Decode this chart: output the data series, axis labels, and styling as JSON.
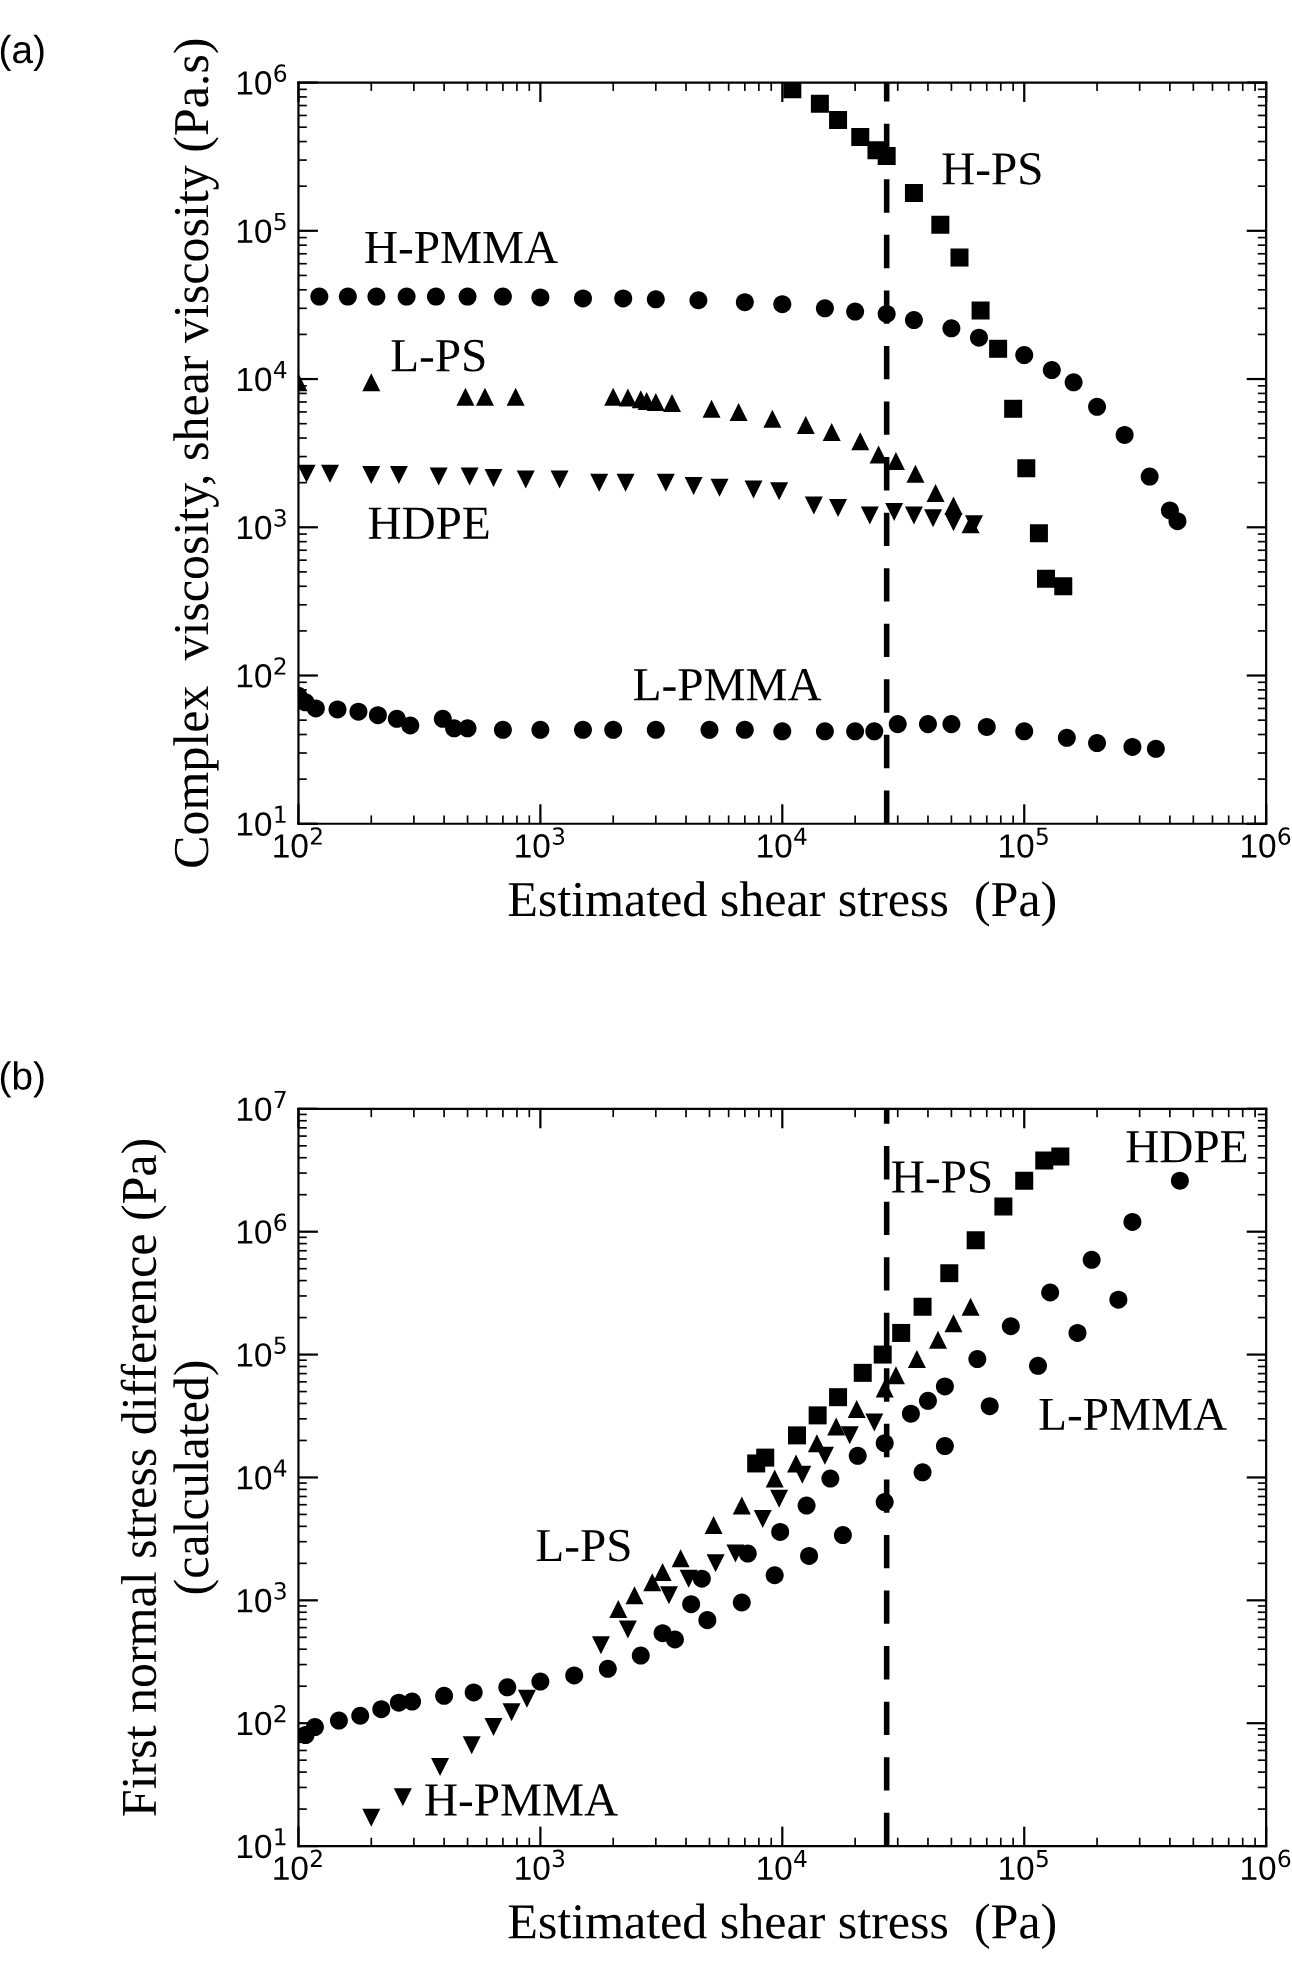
{
  "chart_data": [
    {
      "type": "scatter",
      "title": "(a)",
      "xlabel": "Estimated shear stress  (Pa)",
      "ylabel": "Complex  viscosity, shear viscosity (Pa.s)",
      "log": "xy",
      "grid": false,
      "xlim": [
        100,
        1000000
      ],
      "xticks": [
        {
          "value": 100,
          "label": "10$^{2}$"
        },
        {
          "value": 1000,
          "label": "10$^{3}$"
        },
        {
          "value": 10000,
          "label": "10$^{4}$"
        },
        {
          "value": 100000,
          "label": "10$^{5}$"
        },
        {
          "value": 1000000,
          "label": "10$^{6}$"
        }
      ],
      "ylim": [
        10,
        1000000
      ],
      "yticks": [
        {
          "value": 10,
          "label": "10$^{1}$"
        },
        {
          "value": 100,
          "label": "10$^{2}$"
        },
        {
          "value": 1000,
          "label": "10$^{3}$"
        },
        {
          "value": 10000,
          "label": "10$^{4}$"
        },
        {
          "value": 100000,
          "label": "10$^{5}$"
        },
        {
          "value": 1000000,
          "label": "10$^{6}$"
        }
      ],
      "ref_lines": [
        {
          "axis": "x",
          "value": 27000,
          "line_style": "dashed",
          "color": "#000000"
        }
      ],
      "series": [
        {
          "name": "H-PMMA",
          "color": "#000000",
          "marker": "circle",
          "x": [
            122,
            160,
            210,
            280,
            370,
            500,
            700,
            1000,
            1500,
            2200,
            3000,
            4500,
            7000,
            10000,
            15000,
            20000,
            27000,
            35000,
            50000,
            65000,
            100000,
            130000,
            160000,
            200000,
            260000,
            330000,
            400000,
            430000
          ],
          "values": [
            36000,
            36000,
            36000,
            36000,
            36000,
            36000,
            36000,
            35500,
            35000,
            35000,
            34500,
            34000,
            33000,
            32000,
            30000,
            28500,
            27500,
            25000,
            22000,
            19000,
            14500,
            11500,
            9500,
            6500,
            4200,
            2200,
            1300,
            1100
          ]
        },
        {
          "name": "H-PS",
          "color": "#000000",
          "marker": "square",
          "x": [
            11000,
            14300,
            17000,
            21000,
            24500,
            27000,
            35000,
            45000,
            54000,
            66000,
            78000,
            90000,
            102000,
            115000,
            123000,
            145000
          ],
          "values": [
            900000,
            720000,
            560000,
            430000,
            350000,
            320000,
            180000,
            110000,
            66000,
            29000,
            16000,
            6300,
            2500,
            910,
            450,
            400
          ]
        },
        {
          "name": "L-PS",
          "color": "#000000",
          "marker": "triangle",
          "x": [
            100,
            200,
            490,
            590,
            790,
            2000,
            2300,
            2600,
            2750,
            3000,
            3500,
            5100,
            6600,
            9100,
            12500,
            16000,
            21000,
            25000,
            29500,
            35500,
            43000,
            51000,
            60000
          ],
          "values": [
            9500,
            9500,
            7600,
            7600,
            7600,
            7600,
            7500,
            7300,
            7100,
            7000,
            6900,
            6300,
            6000,
            5400,
            4900,
            4400,
            3800,
            3100,
            2800,
            2300,
            1700,
            1400,
            1050
          ]
        },
        {
          "name": "HDPE",
          "color": "#000000",
          "marker": "triangle_down",
          "x": [
            108,
            135,
            200,
            260,
            380,
            510,
            640,
            870,
            1200,
            1750,
            2250,
            3300,
            4300,
            5500,
            7600,
            9700,
            13500,
            17000,
            23000,
            29000,
            35000,
            42000,
            51000,
            62000
          ],
          "values": [
            2300,
            2300,
            2250,
            2250,
            2200,
            2200,
            2150,
            2100,
            2100,
            2000,
            2000,
            2000,
            1900,
            1850,
            1800,
            1750,
            1400,
            1350,
            1200,
            1270,
            1200,
            1150,
            1080,
            1050
          ]
        },
        {
          "name": "L-PMMA",
          "color": "#000000",
          "marker": "circle",
          "x": [
            100,
            107,
            118,
            145,
            177,
            213,
            255,
            290,
            395,
            440,
            500,
            700,
            1000,
            1500,
            2000,
            3000,
            5000,
            7000,
            10000,
            15000,
            20000,
            24000,
            30000,
            40000,
            50000,
            70000,
            100000,
            150000,
            200000,
            280000,
            350000
          ],
          "values": [
            73,
            66,
            60,
            59,
            57,
            54,
            51,
            46,
            51,
            44,
            44,
            43,
            43,
            43,
            43,
            43,
            43,
            43,
            42,
            42,
            42,
            42,
            47,
            47,
            47,
            45,
            42,
            38,
            35,
            33,
            32
          ]
        }
      ],
      "legend": "top right"
    },
    {
      "type": "scatter",
      "title": "(b)",
      "xlabel": "Estimated shear stress  (Pa)",
      "ylabel": "First normal stress difference (Pa)\n(calculated)",
      "log": "xy",
      "grid": false,
      "xlim": [
        100,
        1000000
      ],
      "xticks": [
        {
          "value": 100,
          "label": "10$^{2}$"
        },
        {
          "value": 1000,
          "label": "10$^{3}$"
        },
        {
          "value": 10000,
          "label": "10$^{4}$"
        },
        {
          "value": 100000,
          "label": "10$^{5}$"
        },
        {
          "value": 1000000,
          "label": "10$^{6}$"
        }
      ],
      "ylim": [
        10,
        10000000
      ],
      "yticks": [
        {
          "value": 10,
          "label": "10$^{1}$"
        },
        {
          "value": 100,
          "label": "10$^{2}$"
        },
        {
          "value": 1000,
          "label": "10$^{3}$"
        },
        {
          "value": 10000,
          "label": "10$^{4}$"
        },
        {
          "value": 100000,
          "label": "10$^{5}$"
        },
        {
          "value": 1000000,
          "label": "10$^{6}$"
        },
        {
          "value": 10000000,
          "label": "10$^{7}$"
        }
      ],
      "ref_lines": [
        {
          "axis": "x",
          "value": 27000,
          "line_style": "dashed",
          "color": "#000000"
        }
      ],
      "series": [
        {
          "name": "H-PS",
          "color": "#000000",
          "marker": "square",
          "x": [
            7800,
            8500,
            11500,
            14000,
            17000,
            21500,
            26000,
            31000,
            38000,
            49000,
            63000,
            82000,
            100000,
            121000,
            141000
          ],
          "values": [
            13000,
            14500,
            22000,
            32000,
            45000,
            71000,
            100000,
            150000,
            245000,
            460000,
            850000,
            1600000,
            2600000,
            3800000,
            4100000
          ]
        },
        {
          "name": "L-PS",
          "color": "#000000",
          "marker": "triangle",
          "x": [
            2100,
            2450,
            2900,
            3200,
            3800,
            5200,
            6800,
            9300,
            11400,
            13900,
            16700,
            20300,
            26500,
            29500,
            36000,
            44000,
            51000,
            60000
          ],
          "values": [
            850,
            1100,
            1400,
            1700,
            2200,
            4100,
            5900,
            9800,
            13000,
            19000,
            26000,
            36000,
            53000,
            68000,
            92000,
            132000,
            180000,
            245000
          ]
        },
        {
          "name": "H-PMMA",
          "color": "#000000",
          "marker": "triangle_down",
          "x": [
            200,
            270,
            385,
            520,
            640,
            760,
            880,
            1780,
            2300,
            3400,
            4100,
            5300,
            6400,
            8300,
            9700,
            12100,
            15000,
            19000,
            24000
          ],
          "values": [
            17,
            25,
            44,
            66,
            93,
            123,
            158,
            430,
            580,
            1100,
            1500,
            2000,
            2400,
            4600,
            6700,
            10500,
            15000,
            22000,
            28000
          ]
        },
        {
          "name": "HDPE",
          "color": "#000000",
          "marker": "circle",
          "x": [
            3200,
            4200,
            4650,
            7200,
            9800,
            12600,
            15800,
            20500,
            26500,
            34000,
            40000,
            47000,
            64000,
            88000,
            128000,
            190000,
            280000,
            440000
          ],
          "values": [
            540,
            930,
            1500,
            2400,
            3600,
            5900,
            9800,
            15000,
            19000,
            33000,
            42000,
            55000,
            92000,
            170000,
            320000,
            590000,
            1200000,
            2600000
          ]
        },
        {
          "name": "L-PMMA",
          "color": "#000000",
          "marker": "circle",
          "x": [
            107,
            117,
            147,
            180,
            220,
            260,
            295,
            400,
            530,
            730,
            1000,
            1380,
            1900,
            2600,
            3600,
            4900,
            6800,
            9300,
            12900,
            17800,
            26500,
            38000,
            47000,
            72000,
            114000,
            166000,
            245000
          ],
          "values": [
            80,
            93,
            105,
            115,
            130,
            147,
            150,
            167,
            178,
            196,
            218,
            245,
            277,
            355,
            480,
            690,
            960,
            1600,
            2300,
            3400,
            6300,
            11000,
            18000,
            38000,
            81000,
            150000,
            280000
          ]
        }
      ],
      "legend": "top right"
    }
  ]
}
